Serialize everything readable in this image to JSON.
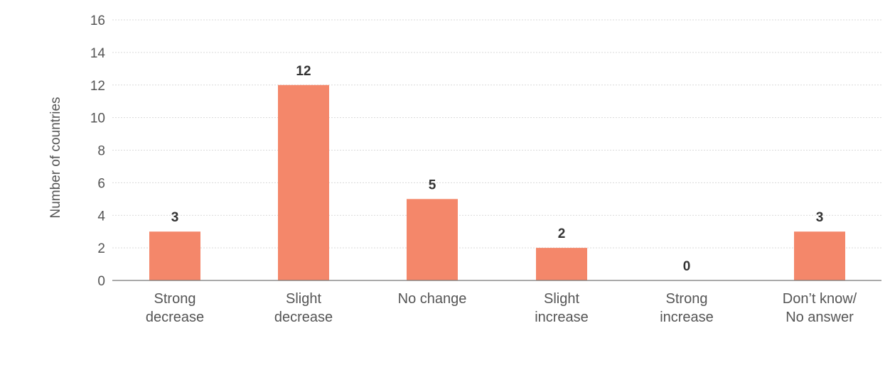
{
  "chart_data": {
    "type": "bar",
    "categories": [
      [
        "Strong",
        "decrease"
      ],
      [
        "Slight",
        "decrease"
      ],
      [
        "No change"
      ],
      [
        "Slight",
        "increase"
      ],
      [
        "Strong",
        "increase"
      ],
      [
        "Don’t know/",
        "No answer"
      ]
    ],
    "values": [
      3,
      12,
      5,
      2,
      0,
      3
    ],
    "data_labels": [
      "3",
      "12",
      "5",
      "2",
      "0",
      "3"
    ],
    "title": "",
    "xlabel": "",
    "ylabel": "Number of countries",
    "ylim": [
      0,
      16
    ],
    "yticks": [
      0,
      2,
      4,
      6,
      8,
      10,
      12,
      14,
      16
    ],
    "grid": true,
    "colors": {
      "bar": "#F4876A"
    }
  }
}
